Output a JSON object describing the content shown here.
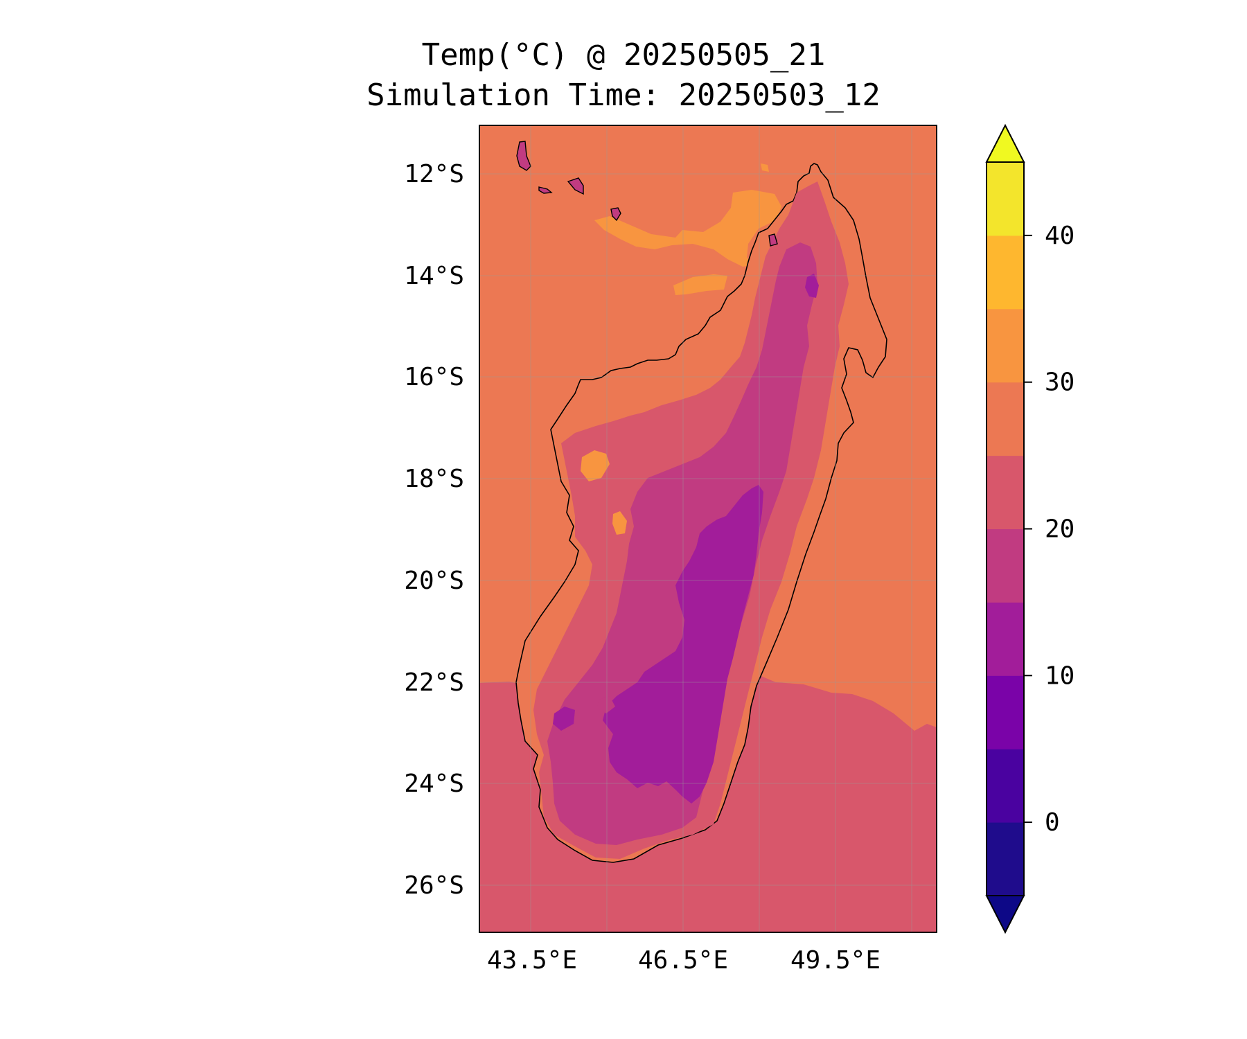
{
  "figure": {
    "title": "Temp(°C) @ 20250505_21",
    "subtitle": "Simulation Time: 20250503_12"
  },
  "map": {
    "variable": "Temp(°C)",
    "region": "Madagascar",
    "lat_range_deg": [
      -27.0,
      -11.1
    ],
    "lon_range_deg": [
      42.5,
      51.5
    ],
    "gridlines": true,
    "coastline": true,
    "lat_ticks": [
      "12°S",
      "14°S",
      "16°S",
      "18°S",
      "20°S",
      "22°S",
      "24°S",
      "26°S"
    ],
    "lon_ticks": [
      "43.5°E",
      "46.5°E",
      "49.5°E"
    ],
    "fill_levels_description": "sea north of 22°S ~25-30°C, sea south ~20-25°C, land interior 10-20°C"
  },
  "colorbar": {
    "extend": "both",
    "tick_labels": [
      "0",
      "10",
      "20",
      "30",
      "40"
    ],
    "levels": [
      -5,
      0,
      5,
      10,
      15,
      20,
      25,
      30,
      35,
      40,
      45
    ],
    "colors": [
      "#1f0c8c",
      "#4a02a0",
      "#7a03a8",
      "#a21d9a",
      "#c13b81",
      "#d8576b",
      "#ec7853",
      "#f89540",
      "#feb72f",
      "#f3e52c"
    ],
    "under_color": "#0d0887",
    "over_color": "#f0f921"
  },
  "chart_data": {
    "type": "heatmap",
    "title": "Temp(°C) @ 20250505_21",
    "subtitle": "Simulation Time: 20250503_12",
    "xlabel": "",
    "ylabel": "",
    "x_ticks": [
      "43.5°E",
      "46.5°E",
      "49.5°E"
    ],
    "y_ticks": [
      "12°S",
      "14°S",
      "16°S",
      "18°S",
      "20°S",
      "22°S",
      "24°S",
      "26°S"
    ],
    "xlim": [
      42.5,
      51.5
    ],
    "ylim": [
      -27.0,
      -11.1
    ],
    "colorbar_ticks": [
      0,
      10,
      20,
      30,
      40
    ],
    "colorbar_range": [
      -5,
      45
    ],
    "grid": true
  }
}
